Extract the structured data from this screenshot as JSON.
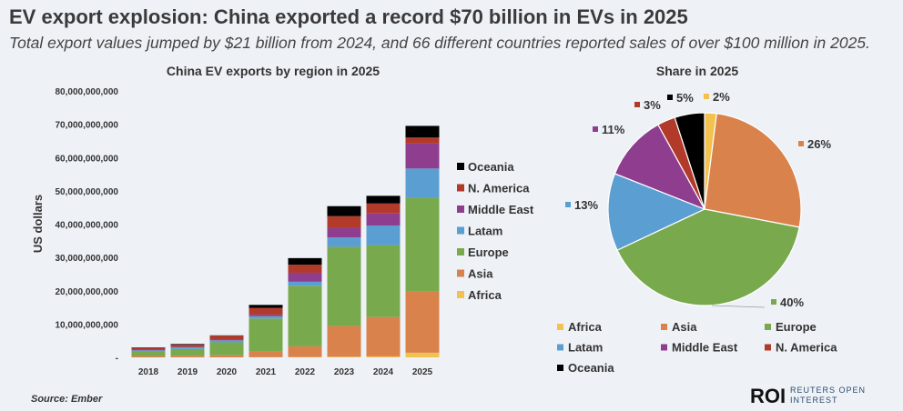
{
  "header": {
    "title": "EV export explosion: China exported a record $70 billion in EVs in 2025",
    "subtitle": "Total export values jumped by $21 billion from 2024, and 66 different countries reported sales of over $100 million in 2025."
  },
  "colors": {
    "Africa": "#f2c14e",
    "Asia": "#d9824b",
    "Europe": "#79a94d",
    "Latam": "#5b9fd2",
    "Middle East": "#8e3d8f",
    "N. America": "#b23a2a",
    "Oceania": "#000000"
  },
  "chart_data": [
    {
      "type": "bar",
      "stacked": true,
      "title": "China EV exports by region in 2025",
      "xlabel": "",
      "ylabel": "US dollars",
      "ylim": [
        0,
        80000000000
      ],
      "yticks": [
        0,
        10000000000,
        20000000000,
        30000000000,
        40000000000,
        50000000000,
        60000000000,
        70000000000,
        80000000000
      ],
      "ytick_labels": [
        "-",
        "10,000,000,000",
        "20,000,000,000",
        "30,000,000,000",
        "40,000,000,000",
        "50,000,000,000",
        "60,000,000,000",
        "70,000,000,000",
        "80,000,000,000"
      ],
      "categories": [
        "2018",
        "2019",
        "2020",
        "2021",
        "2022",
        "2023",
        "2024",
        "2025"
      ],
      "legend_position": "right",
      "legend_order": [
        "Oceania",
        "N. America",
        "Middle East",
        "Latam",
        "Europe",
        "Asia",
        "Africa"
      ],
      "series": [
        {
          "name": "Africa",
          "values": [
            0.0,
            0.0,
            0.0,
            0.05,
            0.1,
            0.2,
            0.3,
            1.4
          ]
        },
        {
          "name": "Asia",
          "values": [
            0.4,
            0.5,
            0.6,
            1.7,
            3.2,
            9.2,
            11.8,
            18.3
          ]
        },
        {
          "name": "Europe",
          "values": [
            1.5,
            2.0,
            3.9,
            9.9,
            18.2,
            23.8,
            21.6,
            28.2
          ]
        },
        {
          "name": "Latam",
          "values": [
            0.2,
            0.5,
            0.6,
            0.7,
            1.2,
            2.8,
            5.9,
            8.8
          ]
        },
        {
          "name": "Middle East",
          "values": [
            0.1,
            0.2,
            0.1,
            0.5,
            2.7,
            2.9,
            3.6,
            7.5
          ]
        },
        {
          "name": "N. America",
          "values": [
            0.7,
            0.6,
            1.3,
            2.0,
            2.4,
            3.5,
            3.0,
            1.8
          ]
        },
        {
          "name": "Oceania",
          "values": [
            0.1,
            0.2,
            0.1,
            0.9,
            2.0,
            3.0,
            2.3,
            3.5
          ]
        }
      ],
      "value_units": "billion US dollars"
    },
    {
      "type": "pie",
      "title": "Share in 2025",
      "legend_position": "bottom",
      "slices": [
        {
          "name": "Africa",
          "value": 2,
          "label": "2%"
        },
        {
          "name": "Asia",
          "value": 26,
          "label": "26%"
        },
        {
          "name": "Europe",
          "value": 40,
          "label": "40%"
        },
        {
          "name": "Latam",
          "value": 13,
          "label": "13%"
        },
        {
          "name": "Middle East",
          "value": 11,
          "label": "11%"
        },
        {
          "name": "N. America",
          "value": 3,
          "label": "3%"
        },
        {
          "name": "Oceania",
          "value": 5,
          "label": "5%"
        }
      ]
    }
  ],
  "footer": {
    "source": "Source:  Ember",
    "logo": "ROI",
    "logo_sub1": "REUTERS OPEN",
    "logo_sub2": "INTEREST"
  }
}
